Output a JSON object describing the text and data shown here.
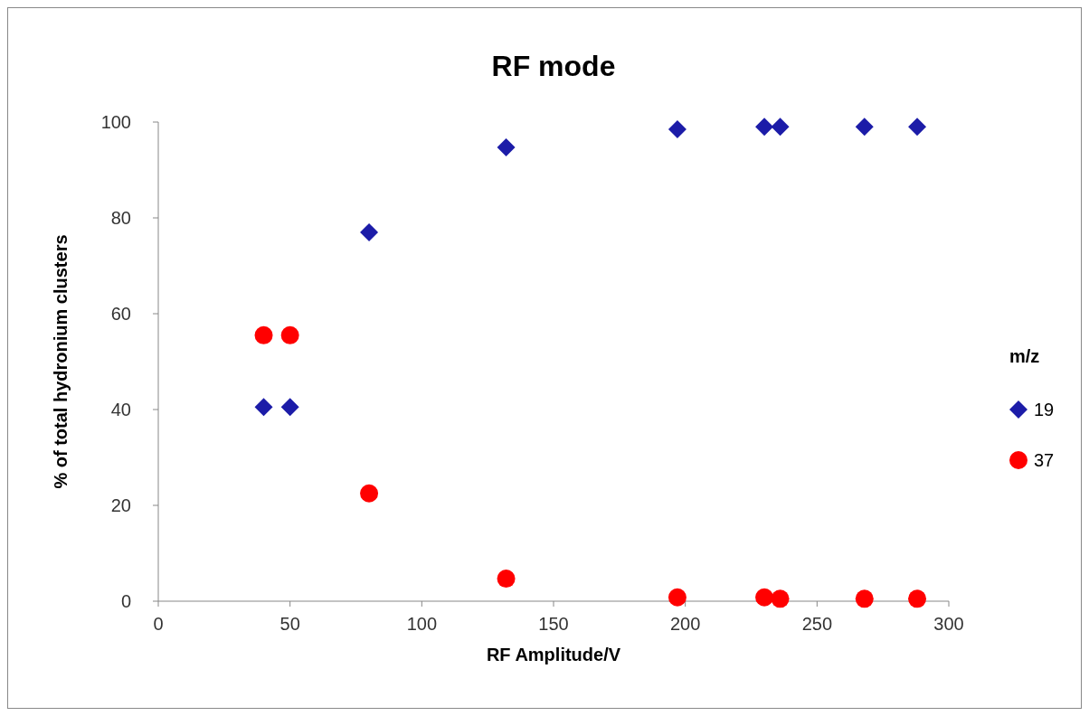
{
  "chart_data": {
    "type": "scatter",
    "title": "RF mode",
    "xlabel": "RF Amplitude/V",
    "ylabel": "% of total hydronium clusters",
    "legend_title": "m/z",
    "xlim": [
      0,
      300
    ],
    "xticks": [
      0,
      50,
      100,
      150,
      200,
      250,
      300
    ],
    "ylim": [
      0,
      100
    ],
    "yticks": [
      0,
      20,
      40,
      60,
      80,
      100
    ],
    "grid": false,
    "legend": "right",
    "series": [
      {
        "name": "19",
        "color": "#1c1ca8",
        "marker": "diamond",
        "x": [
          40,
          50,
          80,
          132,
          197,
          230,
          236,
          268,
          288
        ],
        "values": [
          40.5,
          40.5,
          77,
          94.7,
          98.5,
          99,
          99,
          99,
          99
        ]
      },
      {
        "name": "37",
        "color": "#ff0000",
        "marker": "circle",
        "x": [
          40,
          50,
          80,
          132,
          197,
          230,
          236,
          268,
          288
        ],
        "values": [
          55.5,
          55.5,
          22.5,
          4.7,
          0.8,
          0.8,
          0.5,
          0.5,
          0.5
        ]
      }
    ]
  }
}
